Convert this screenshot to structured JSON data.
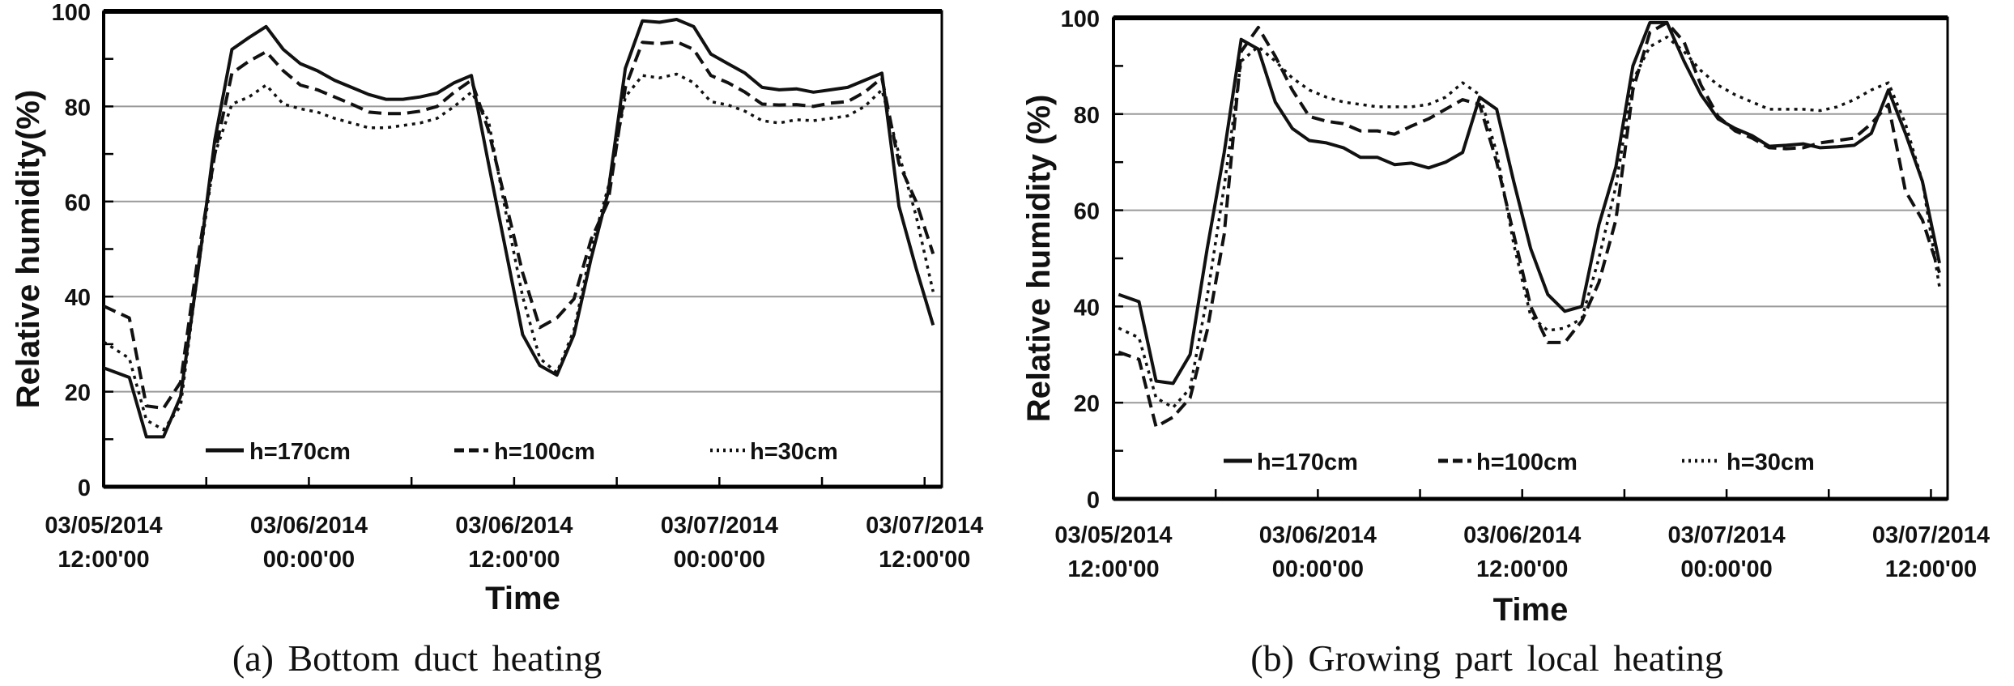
{
  "chart_data": [
    {
      "type": "line",
      "caption": "(a)  Bottom  duct  heating",
      "xlabel": "Time",
      "ylabel": "Relative humidity(%)",
      "ylim": [
        0,
        100
      ],
      "yticks": [
        0,
        20,
        40,
        60,
        80,
        100
      ],
      "xlim_hours": [
        0,
        48.5
      ],
      "xtick_labels": [
        {
          "hour": 0,
          "date": "03/05/2014",
          "time": "12:00'00"
        },
        {
          "hour": 12,
          "date": "03/06/2014",
          "time": "00:00'00"
        },
        {
          "hour": 24,
          "date": "03/06/2014",
          "time": "12:00'00"
        },
        {
          "hour": 36,
          "date": "03/07/2014",
          "time": "00:00'00"
        },
        {
          "hour": 48,
          "date": "03/07/2014",
          "time": "12:00'00"
        }
      ],
      "grid": "horizontal",
      "legend_position": "bottom",
      "x": [
        0,
        1.5,
        2.5,
        3.5,
        4.5,
        5.5,
        6.5,
        7.5,
        8.5,
        9.5,
        10.5,
        11.5,
        12.5,
        13.5,
        14.5,
        15.5,
        16.5,
        17.5,
        18.5,
        19.5,
        20.5,
        21.5,
        22.5,
        23.5,
        24.5,
        25.5,
        26.5,
        27.5,
        28.5,
        29.5,
        30.5,
        31.5,
        32.5,
        33.5,
        34.5,
        35.5,
        36.5,
        37.5,
        38.5,
        39.5,
        40.5,
        41.5,
        42.5,
        43.5,
        44.5,
        45.5,
        46.5,
        47.5,
        48.5
      ],
      "series": [
        {
          "name": "h=170cm",
          "style": "solid",
          "values": [
            25,
            23,
            10.5,
            10.5,
            19,
            45,
            73,
            92,
            94.5,
            96.8,
            92,
            89,
            87.5,
            85.5,
            84,
            82.5,
            81.5,
            81.5,
            82,
            82.8,
            85,
            86.5,
            68,
            50,
            32,
            25.5,
            23.5,
            32,
            48,
            62,
            88,
            98,
            97.7,
            98.3,
            96.8,
            91,
            89,
            87,
            84,
            83.5,
            83.7,
            83,
            83.5,
            84,
            85.5,
            87,
            59,
            46,
            34
          ]
        },
        {
          "name": "h=100cm",
          "style": "dashed",
          "values": [
            38,
            35.5,
            17,
            16.5,
            22,
            48,
            70,
            87,
            89.5,
            91.5,
            87.5,
            84.5,
            83.5,
            82,
            80.5,
            78.8,
            78.5,
            78.5,
            79,
            80,
            83,
            85.5,
            75,
            60,
            45,
            33.5,
            35.5,
            39.5,
            52,
            60,
            84,
            93.5,
            93.2,
            93.6,
            92,
            86.5,
            85,
            83,
            80.5,
            80.3,
            80.4,
            80,
            80.7,
            81,
            83,
            86,
            68,
            60,
            49
          ]
        },
        {
          "name": "h=30cm",
          "style": "dotted",
          "values": [
            30.5,
            27,
            14,
            12,
            17,
            45,
            70,
            80.5,
            82,
            84.5,
            80.5,
            79.5,
            78.8,
            77.5,
            76.5,
            75.5,
            75.5,
            76,
            76.5,
            77.5,
            80,
            83,
            77,
            58,
            40,
            27,
            24,
            33,
            50,
            63,
            82,
            86.5,
            86,
            86.8,
            85,
            81,
            80.3,
            79,
            77,
            76.5,
            77.2,
            77,
            77.5,
            78,
            80,
            83.5,
            70,
            57,
            41
          ]
        }
      ]
    },
    {
      "type": "line",
      "caption": "(b)  Growing  part  local  heating",
      "xlabel": "Time",
      "ylabel": "Relative humidity (%)",
      "ylim": [
        0,
        100
      ],
      "yticks": [
        0,
        20,
        40,
        60,
        80,
        100
      ],
      "xlim_hours": [
        0,
        49
      ],
      "xtick_labels": [
        {
          "hour": 0,
          "date": "03/05/2014",
          "time": "12:00'00"
        },
        {
          "hour": 12,
          "date": "03/06/2014",
          "time": "00:00'00"
        },
        {
          "hour": 24,
          "date": "03/06/2014",
          "time": "12:00'00"
        },
        {
          "hour": 36,
          "date": "03/07/2014",
          "time": "00:00'00"
        },
        {
          "hour": 48,
          "date": "03/07/2014",
          "time": "12:00'00"
        }
      ],
      "grid": "horizontal",
      "legend_position": "bottom",
      "x": [
        0.3,
        1.5,
        2.5,
        3.5,
        4.5,
        5.5,
        6.5,
        7.5,
        8.5,
        9.5,
        10.5,
        11.5,
        12.5,
        13.5,
        14.5,
        15.5,
        16.5,
        17.5,
        18.5,
        19.5,
        20.5,
        21.5,
        22.5,
        23.5,
        24.5,
        25.5,
        26.5,
        27.5,
        28.5,
        29.5,
        30.5,
        31.5,
        32.5,
        33.5,
        34.5,
        35.5,
        36.5,
        37.5,
        38.5,
        39.5,
        40.5,
        41.5,
        42.5,
        43.5,
        44.5,
        45.5,
        46.5,
        47.5,
        48.5
      ],
      "series": [
        {
          "name": "h=170cm",
          "style": "solid",
          "values": [
            42.5,
            41,
            24.5,
            24,
            30,
            52,
            72,
            95.5,
            93.5,
            82.5,
            77,
            74.5,
            74,
            73,
            71,
            71,
            69.5,
            69.8,
            68.8,
            70,
            72,
            83.5,
            81,
            66,
            52,
            42.5,
            39,
            40,
            57,
            69,
            90,
            99,
            99,
            91,
            84,
            79,
            77,
            75.5,
            73.3,
            73.5,
            73.8,
            73,
            73.2,
            73.5,
            76,
            85,
            76,
            66,
            49
          ]
        },
        {
          "name": "h=100cm",
          "style": "dashed",
          "values": [
            30.5,
            29,
            15,
            17,
            21,
            35,
            55,
            93,
            98,
            92,
            85,
            79.5,
            78.5,
            78,
            76.5,
            76.5,
            75.8,
            77.5,
            79,
            81,
            83,
            82,
            70,
            55,
            40,
            32.5,
            32.5,
            37,
            45,
            58,
            85,
            97,
            99,
            95,
            86,
            79.5,
            76.5,
            75,
            73,
            72.8,
            73,
            74,
            74.5,
            75,
            78,
            82,
            64,
            58,
            47
          ]
        },
        {
          "name": "h=30cm",
          "style": "dotted",
          "values": [
            35.5,
            33.5,
            21,
            19,
            23,
            42,
            65,
            91,
            94,
            91,
            87.5,
            85,
            83.5,
            82.5,
            82,
            81.5,
            81.5,
            81.5,
            82,
            83.5,
            86.5,
            84,
            72,
            53,
            38,
            35,
            35.5,
            37.5,
            50,
            65,
            87,
            94,
            96,
            93,
            89,
            86,
            84,
            82.5,
            81,
            81,
            81,
            80.7,
            81.5,
            83,
            85,
            86.5,
            78,
            66,
            44
          ]
        }
      ]
    }
  ],
  "colors": {
    "line": "#111111",
    "grid": "#9a9a9a",
    "frame": "#000000"
  }
}
